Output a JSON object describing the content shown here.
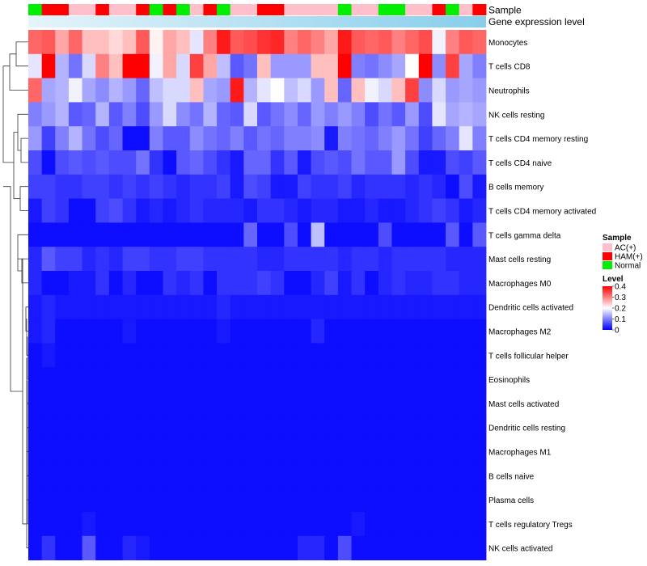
{
  "chart_data": {
    "type": "heatmap",
    "annotation_labels": [
      "Sample",
      "Gene expression level"
    ],
    "row_labels": [
      "Monocytes",
      "T cells CD8",
      "Neutrophils",
      "NK cells resting",
      "T cells CD4 memory resting",
      "T cells CD4 naive",
      "B cells memory",
      "T cells CD4 memory activated",
      "T cells gamma delta",
      "Mast cells resting",
      "Macrophages M0",
      "Dendritic cells activated",
      "Macrophages M2",
      "T cells follicular helper",
      "Eosinophils",
      "Mast cells activated",
      "Dendritic cells resting",
      "Macrophages M1",
      "B cells naive",
      "Plasma cells",
      "T cells regulatory  Tregs",
      "NK cells activated"
    ],
    "sample_groups": [
      "N",
      "H",
      "H",
      "A",
      "A",
      "H",
      "A",
      "A",
      "H",
      "N",
      "H",
      "N",
      "A",
      "H",
      "N",
      "A",
      "A",
      "H",
      "H",
      "A",
      "A",
      "A",
      "A",
      "N",
      "A",
      "A",
      "N",
      "N",
      "A",
      "A",
      "H",
      "N",
      "A",
      "H"
    ],
    "values": [
      [
        0.32,
        0.33,
        0.27,
        0.32,
        0.25,
        0.25,
        0.23,
        0.25,
        0.33,
        0.21,
        0.27,
        0.25,
        0.18,
        0.3,
        0.38,
        0.33,
        0.34,
        0.36,
        0.37,
        0.3,
        0.32,
        0.3,
        0.27,
        0.38,
        0.33,
        0.32,
        0.33,
        0.3,
        0.32,
        0.34,
        0.19,
        0.3,
        0.33,
        0.32
      ],
      [
        0.18,
        0.4,
        0.14,
        0.09,
        0.17,
        0.3,
        0.25,
        0.4,
        0.4,
        0.19,
        0.27,
        0.17,
        0.35,
        0.27,
        0.15,
        0.07,
        0.09,
        0.25,
        0.12,
        0.12,
        0.12,
        0.25,
        0.25,
        0.4,
        0.1,
        0.09,
        0.11,
        0.13,
        0.2,
        0.41,
        0.11,
        0.35,
        0.13,
        0.1
      ],
      [
        0.32,
        0.13,
        0.14,
        0.19,
        0.13,
        0.11,
        0.14,
        0.12,
        0.08,
        0.15,
        0.17,
        0.17,
        0.25,
        0.13,
        0.12,
        0.38,
        0.14,
        0.18,
        0.2,
        0.15,
        0.17,
        0.12,
        0.25,
        0.08,
        0.25,
        0.19,
        0.17,
        0.25,
        0.35,
        0.11,
        0.17,
        0.12,
        0.13,
        0.12
      ],
      [
        0.1,
        0.12,
        0.14,
        0.07,
        0.08,
        0.14,
        0.07,
        0.1,
        0.06,
        0.12,
        0.17,
        0.11,
        0.09,
        0.14,
        0.08,
        0.07,
        0.17,
        0.07,
        0.09,
        0.11,
        0.08,
        0.12,
        0.1,
        0.12,
        0.1,
        0.06,
        0.09,
        0.07,
        0.12,
        0.06,
        0.18,
        0.13,
        0.14,
        0.13
      ],
      [
        0.12,
        0.05,
        0.1,
        0.14,
        0.09,
        0.06,
        0.08,
        0.01,
        0.01,
        0.1,
        0.07,
        0.07,
        0.11,
        0.09,
        0.08,
        0.1,
        0.07,
        0.09,
        0.08,
        0.1,
        0.1,
        0.11,
        0.02,
        0.1,
        0.09,
        0.08,
        0.1,
        0.12,
        0.09,
        0.05,
        0.08,
        0.1,
        0.18,
        0.1
      ],
      [
        0.06,
        0.01,
        0.06,
        0.07,
        0.06,
        0.07,
        0.06,
        0.06,
        0.09,
        0.04,
        0.01,
        0.07,
        0.08,
        0.06,
        0.04,
        0.02,
        0.08,
        0.08,
        0.04,
        0.07,
        0.02,
        0.06,
        0.07,
        0.06,
        0.09,
        0.07,
        0.07,
        0.12,
        0.06,
        0.02,
        0.02,
        0.06,
        0.05,
        0.07
      ],
      [
        0.05,
        0.05,
        0.04,
        0.04,
        0.05,
        0.05,
        0.04,
        0.05,
        0.04,
        0.05,
        0.04,
        0.03,
        0.04,
        0.04,
        0.05,
        0.02,
        0.06,
        0.05,
        0.02,
        0.02,
        0.05,
        0.04,
        0.04,
        0.05,
        0.03,
        0.04,
        0.04,
        0.04,
        0.03,
        0.04,
        0.03,
        0.01,
        0.06,
        0.02
      ],
      [
        0.02,
        0.05,
        0.04,
        0.01,
        0.01,
        0.05,
        0.06,
        0.04,
        0.02,
        0.03,
        0.02,
        0.03,
        0.04,
        0.03,
        0.03,
        0.03,
        0.02,
        0.04,
        0.04,
        0.03,
        0.02,
        0.03,
        0.03,
        0.02,
        0.02,
        0.03,
        0.02,
        0.02,
        0.03,
        0.04,
        0.05,
        0.04,
        0.02,
        0.03
      ],
      [
        0.01,
        0.01,
        0.01,
        0.01,
        0.01,
        0.01,
        0.01,
        0.01,
        0.01,
        0.01,
        0.01,
        0.01,
        0.01,
        0.01,
        0.01,
        0.01,
        0.08,
        0.01,
        0.01,
        0.06,
        0.01,
        0.15,
        0.01,
        0.01,
        0.01,
        0.01,
        0.06,
        0.01,
        0.01,
        0.01,
        0.01,
        0.07,
        0.01,
        0.07
      ],
      [
        0.03,
        0.07,
        0.05,
        0.05,
        0.03,
        0.04,
        0.03,
        0.05,
        0.05,
        0.04,
        0.04,
        0.05,
        0.05,
        0.04,
        0.04,
        0.04,
        0.04,
        0.03,
        0.03,
        0.04,
        0.04,
        0.04,
        0.04,
        0.03,
        0.04,
        0.04,
        0.03,
        0.04,
        0.04,
        0.04,
        0.04,
        0.03,
        0.03,
        0.03
      ],
      [
        0.03,
        0.01,
        0.01,
        0.02,
        0.02,
        0.04,
        0.01,
        0.03,
        0.01,
        0.01,
        0.04,
        0.03,
        0.04,
        0.01,
        0.04,
        0.04,
        0.04,
        0.05,
        0.04,
        0.01,
        0.01,
        0.03,
        0.05,
        0.02,
        0.04,
        0.01,
        0.03,
        0.04,
        0.03,
        0.03,
        0.04,
        0.04,
        0.03,
        0.03
      ],
      [
        0.02,
        0.03,
        0.02,
        0.02,
        0.02,
        0.02,
        0.02,
        0.02,
        0.02,
        0.02,
        0.02,
        0.02,
        0.02,
        0.02,
        0.03,
        0.02,
        0.02,
        0.02,
        0.02,
        0.02,
        0.02,
        0.02,
        0.02,
        0.02,
        0.02,
        0.02,
        0.02,
        0.02,
        0.02,
        0.02,
        0.02,
        0.02,
        0.02,
        0.02
      ],
      [
        0.02,
        0.03,
        0.01,
        0.01,
        0.01,
        0.01,
        0.01,
        0.02,
        0.01,
        0.01,
        0.01,
        0.01,
        0.01,
        0.01,
        0.02,
        0.01,
        0.01,
        0.01,
        0.01,
        0.01,
        0.01,
        0.03,
        0.01,
        0.01,
        0.01,
        0.01,
        0.01,
        0.01,
        0.01,
        0.01,
        0.01,
        0.01,
        0.01,
        0.01
      ],
      [
        0.01,
        0.02,
        0.01,
        0.01,
        0.01,
        0.01,
        0.01,
        0.01,
        0.01,
        0.01,
        0.01,
        0.01,
        0.01,
        0.01,
        0.01,
        0.01,
        0.01,
        0.01,
        0.01,
        0.01,
        0.01,
        0.01,
        0.01,
        0.01,
        0.01,
        0.01,
        0.01,
        0.01,
        0.01,
        0.01,
        0.01,
        0.01,
        0.01,
        0.01
      ],
      [
        0.01,
        0.01,
        0.01,
        0.01,
        0.01,
        0.01,
        0.01,
        0.01,
        0.01,
        0.01,
        0.01,
        0.01,
        0.01,
        0.01,
        0.01,
        0.01,
        0.01,
        0.01,
        0.01,
        0.01,
        0.01,
        0.01,
        0.01,
        0.01,
        0.01,
        0.01,
        0.01,
        0.01,
        0.01,
        0.01,
        0.01,
        0.01,
        0.01,
        0.01
      ],
      [
        0.01,
        0.01,
        0.01,
        0.01,
        0.01,
        0.01,
        0.01,
        0.01,
        0.01,
        0.01,
        0.01,
        0.01,
        0.01,
        0.01,
        0.01,
        0.01,
        0.01,
        0.01,
        0.01,
        0.01,
        0.01,
        0.01,
        0.01,
        0.01,
        0.01,
        0.01,
        0.01,
        0.01,
        0.01,
        0.01,
        0.01,
        0.01,
        0.01,
        0.01
      ],
      [
        0.01,
        0.01,
        0.01,
        0.01,
        0.01,
        0.01,
        0.01,
        0.01,
        0.01,
        0.01,
        0.01,
        0.01,
        0.01,
        0.01,
        0.01,
        0.01,
        0.01,
        0.01,
        0.01,
        0.01,
        0.01,
        0.01,
        0.01,
        0.01,
        0.01,
        0.01,
        0.01,
        0.01,
        0.01,
        0.01,
        0.01,
        0.01,
        0.01,
        0.01
      ],
      [
        0.01,
        0.01,
        0.01,
        0.01,
        0.01,
        0.01,
        0.01,
        0.01,
        0.01,
        0.01,
        0.01,
        0.01,
        0.01,
        0.01,
        0.01,
        0.01,
        0.01,
        0.01,
        0.01,
        0.01,
        0.01,
        0.01,
        0.01,
        0.01,
        0.01,
        0.01,
        0.01,
        0.01,
        0.01,
        0.01,
        0.01,
        0.01,
        0.01,
        0.01
      ],
      [
        0.01,
        0.01,
        0.01,
        0.01,
        0.01,
        0.01,
        0.01,
        0.01,
        0.01,
        0.01,
        0.01,
        0.01,
        0.01,
        0.01,
        0.01,
        0.01,
        0.01,
        0.01,
        0.01,
        0.01,
        0.01,
        0.01,
        0.01,
        0.01,
        0.01,
        0.01,
        0.01,
        0.01,
        0.01,
        0.01,
        0.01,
        0.01,
        0.01,
        0.01
      ],
      [
        0.01,
        0.01,
        0.01,
        0.01,
        0.01,
        0.01,
        0.01,
        0.01,
        0.01,
        0.01,
        0.01,
        0.01,
        0.01,
        0.01,
        0.01,
        0.01,
        0.01,
        0.01,
        0.01,
        0.01,
        0.01,
        0.01,
        0.01,
        0.01,
        0.01,
        0.01,
        0.01,
        0.01,
        0.01,
        0.01,
        0.01,
        0.01,
        0.01,
        0.01
      ],
      [
        0.01,
        0.01,
        0.01,
        0.01,
        0.02,
        0.01,
        0.01,
        0.01,
        0.01,
        0.01,
        0.01,
        0.01,
        0.01,
        0.01,
        0.01,
        0.01,
        0.01,
        0.01,
        0.01,
        0.01,
        0.01,
        0.01,
        0.01,
        0.01,
        0.02,
        0.01,
        0.01,
        0.01,
        0.01,
        0.01,
        0.01,
        0.01,
        0.01,
        0.01
      ],
      [
        0.01,
        0.04,
        0.01,
        0.01,
        0.07,
        0.01,
        0.01,
        0.03,
        0.02,
        0.01,
        0.01,
        0.01,
        0.01,
        0.01,
        0.01,
        0.01,
        0.01,
        0.01,
        0.01,
        0.01,
        0.03,
        0.03,
        0.01,
        0.06,
        0.01,
        0.01,
        0.01,
        0.01,
        0.01,
        0.01,
        0.01,
        0.01,
        0.01,
        0.01
      ]
    ],
    "legend": {
      "sample_title": "Sample",
      "sample_items": [
        {
          "key": "A",
          "label": "AC(+)",
          "color": "#ffc0cb"
        },
        {
          "key": "H",
          "label": "HAM(+)",
          "color": "#ff0000"
        },
        {
          "key": "N",
          "label": "Normal",
          "color": "#00ee00"
        }
      ],
      "level_title": "Level",
      "level_ticks": [
        "0.4",
        "0.3",
        "0.2",
        "0.1",
        "0"
      ],
      "level_tick_values": [
        0.4,
        0.3,
        0.2,
        0.1,
        0
      ]
    },
    "colors": {
      "low": "#0000ff",
      "mid": "#ffffff",
      "high": "#ff0000",
      "expression_bar": "#87ceeb",
      "dendrogram": "#333333"
    },
    "value_range": [
      0,
      0.4
    ],
    "midpoint": 0.2
  }
}
